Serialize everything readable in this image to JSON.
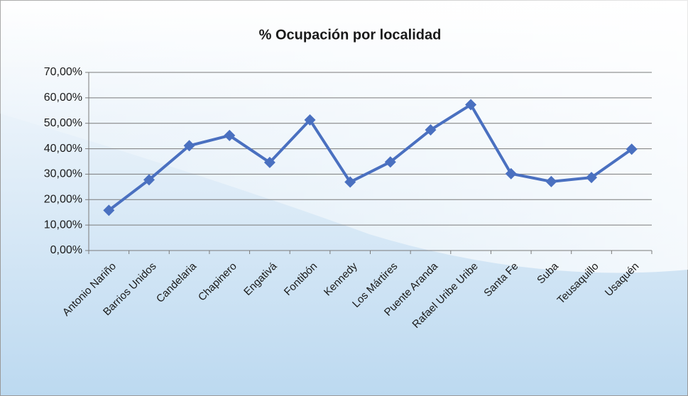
{
  "chart_data": {
    "type": "line",
    "title": "% Ocupación por localidad",
    "categories": [
      "Antonio Nariño",
      "Barrios Unidos",
      "Candelaria",
      "Chapinero",
      "Engativá",
      "Fontibón",
      "Kennedy",
      "Los Mártires",
      "Puente Aranda",
      "Rafael Uribe Uribe",
      "Santa Fe",
      "Suba",
      "Teusaquillo",
      "Usaquén"
    ],
    "series": [
      {
        "name": "% Ocupación",
        "color": "#4a70c0",
        "values": [
          15.8,
          27.8,
          41.2,
          45.2,
          34.6,
          51.3,
          26.9,
          34.8,
          47.4,
          57.3,
          30.2,
          27.1,
          28.7,
          39.8
        ]
      }
    ],
    "ylim": [
      0,
      70
    ],
    "yticks": [
      {
        "value": 0,
        "label": "0,00%"
      },
      {
        "value": 10,
        "label": "10,00%"
      },
      {
        "value": 20,
        "label": "20,00%"
      },
      {
        "value": 30,
        "label": "30,00%"
      },
      {
        "value": 40,
        "label": "40,00%"
      },
      {
        "value": 50,
        "label": "50,00%"
      },
      {
        "value": 60,
        "label": "60,00%"
      },
      {
        "value": 70,
        "label": "70,00%"
      }
    ],
    "grid": true
  }
}
